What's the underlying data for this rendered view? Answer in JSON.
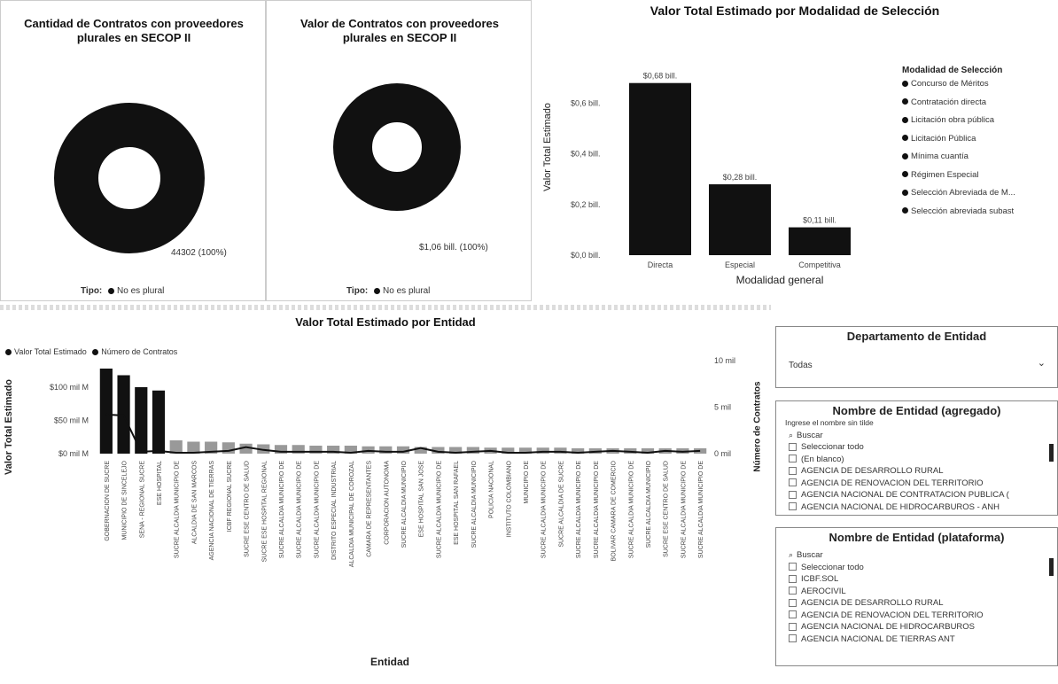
{
  "donut1": {
    "title_line1": "Cantidad de Contratos con proveedores",
    "title_line2": "plurales en SECOP II",
    "data_label": "44302 (100%)",
    "legend_title": "Tipo:",
    "legend_item": "No es plural",
    "color": "#111111"
  },
  "donut2": {
    "title_line1": "Valor de Contratos con proveedores",
    "title_line2": "plurales en SECOP II",
    "data_label": "$1,06 bill. (100%)",
    "legend_title": "Tipo:",
    "legend_item": "No es plural",
    "color": "#111111"
  },
  "modalidad": {
    "title": "Valor Total Estimado por Modalidad de Selección",
    "ylabel": "Valor Total Estimado",
    "xlabel": "Modalidad general",
    "yticks": [
      "$0,6 bill.",
      "$0,4 bill.",
      "$0,2 bill.",
      "$0,0 bill."
    ],
    "legend_title": "Modalidad de Selección",
    "legend_items": [
      "Concurso de Méritos",
      "Contratación directa",
      "Licitación obra pública",
      "Licitación Pública",
      "Mínima cuantía",
      "Régimen Especial",
      "Selección Abreviada de M...",
      "Selección abreviada subast"
    ],
    "chart_data": {
      "type": "bar",
      "categories": [
        "Directa",
        "Especial",
        "Competitiva"
      ],
      "values": [
        0.68,
        0.28,
        0.11
      ],
      "value_labels": [
        "$0,68 bill.",
        "$0,28 bill.",
        "$0,11 bill."
      ],
      "ylim": [
        0,
        0.7
      ]
    }
  },
  "entidad": {
    "title": "Valor Total Estimado por Entidad",
    "legend_items": [
      "Valor Total Estimado",
      "Número de Contratos"
    ],
    "ylabel_left": "Valor Total Estimado",
    "ylabel_right": "Número de Contratos",
    "xlabel": "Entidad",
    "yticks_left": [
      "$100 mil M",
      "$50 mil M",
      "$0 mil M"
    ],
    "yticks_right": [
      "10 mil",
      "5 mil",
      "0 mil"
    ],
    "chart_data": {
      "type": "bar",
      "categories": [
        "GOBERNACION DE SUCRE",
        "MUNICIPIO DE SINCELEJO",
        "SENA - REGIONAL SUCRE",
        "ESE HOSPITAL",
        "SUCRE ALCALDIA MUNICIPIO DE",
        "ALCALDIA DE SAN MARCOS",
        "AGENCIA NACIONAL DE TIERRAS",
        "ICBF REGIONAL SUCRE",
        "SUCRE ESE CENTRO DE SALUD",
        "SUCRE ESE HOSPITAL REGIONAL",
        "SUCRE ALCALDIA MUNICIPIO DE",
        "SUCRE ALCALDIA MUNICIPIO DE",
        "SUCRE ALCALDIA MUNICIPIO DE",
        "DISTRITO ESPECIAL INDUSTRIAL",
        "ALCALDIA MUNICIPAL DE COROZAL",
        "CAMARA DE REPRESENTANTES",
        "CORPORACION AUTONOMA",
        "SUCRE ALCALDIA MUNICIPIO",
        "ESE HOSPITAL SAN JOSE",
        "SUCRE ALCALDIA MUNICIPIO DE",
        "ESE HOSPITAL SAN RAFAEL",
        "SUCRE ALCALDIA MUNICIPIO",
        "POLICIA NACIONAL",
        "INSTITUTO COLOMBIANO",
        "MUNICIPIO DE",
        "SUCRE ALCALDIA MUNICIPIO DE",
        "SUCRE ALCALDIA DE SUCRE",
        "SUCRE ALCALDIA MUNICIPIO DE",
        "SUCRE ALCALDIA MUNICIPIO DE",
        "BOLIVAR CAMARA DE COMERCIO",
        "SUCRE ALCALDIA MUNICIPIO DE",
        "SUCRE ALCALDIA MUNICIPIO",
        "SUCRE ESE CENTRO DE SALUD",
        "SUCRE ALCALDIA MUNICIPIO DE",
        "SUCRE ALCALDIA MUNICIPIO DE"
      ],
      "series": [
        {
          "name": "Valor Total Estimado",
          "values": [
            128,
            118,
            100,
            95,
            20,
            18,
            18,
            17,
            15,
            14,
            13,
            13,
            12,
            12,
            12,
            11,
            11,
            11,
            10,
            10,
            10,
            10,
            9,
            9,
            9,
            9,
            9,
            8,
            8,
            8,
            8,
            8,
            8,
            8,
            8
          ]
        },
        {
          "name": "Número de Contratos",
          "values": [
            4.2,
            4.1,
            0.2,
            0.3,
            0.1,
            0.1,
            0.2,
            0.3,
            0.7,
            0.4,
            0.2,
            0.2,
            0.2,
            0.2,
            0.1,
            0.3,
            0.2,
            0.2,
            0.6,
            0.2,
            0.1,
            0.2,
            0.3,
            0.1,
            0.1,
            0.2,
            0.2,
            0.1,
            0.2,
            0.3,
            0.2,
            0.1,
            0.3,
            0.2,
            0.3
          ]
        }
      ],
      "ylim_left": [
        0,
        140
      ],
      "ylim_right": [
        0,
        10
      ]
    }
  },
  "depto_slicer": {
    "title": "Departamento de Entidad",
    "value": "Todas"
  },
  "agregado_slicer": {
    "title": "Nombre de Entidad (agregado)",
    "hint": "Ingrese el nombre sin tilde",
    "search": "Buscar",
    "items": [
      "Seleccionar todo",
      "(En blanco)",
      "AGENCIA DE DESARROLLO RURAL",
      "AGENCIA DE RENOVACION DEL TERRITORIO",
      "AGENCIA NACIONAL DE CONTRATACION PUBLICA (",
      "AGENCIA NACIONAL DE HIDROCARBUROS - ANH"
    ]
  },
  "plataforma_slicer": {
    "title": "Nombre de Entidad (plataforma)",
    "search": "Buscar",
    "items": [
      "Seleccionar todo",
      "ICBF.SOL",
      "AEROCIVIL",
      "AGENCIA DE DESARROLLO RURAL",
      "AGENCIA DE RENOVACION DEL TERRITORIO",
      "AGENCIA NACIONAL DE HIDROCARBUROS",
      "AGENCIA NACIONAL DE TIERRAS ANT"
    ]
  }
}
